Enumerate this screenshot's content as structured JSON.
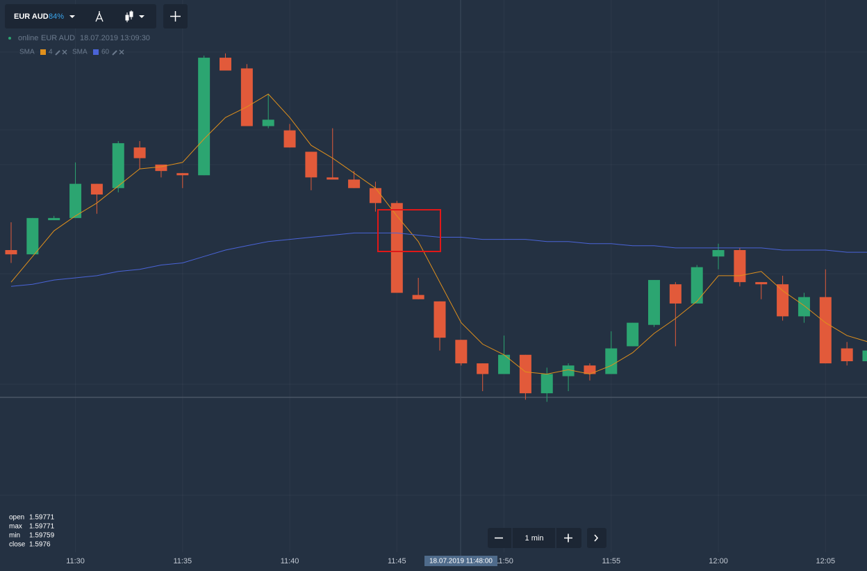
{
  "toolbar": {
    "asset": "EUR AUD",
    "payout": "84%"
  },
  "status": {
    "state": "online",
    "asset": "EUR AUD",
    "time": "18.07.2019 13:09:30"
  },
  "ohlc_panel": {
    "labels": [
      "open",
      "max",
      "min",
      "close"
    ]
  },
  "crosshair_label": "18.07.2019 11:48:00",
  "zoom": {
    "label": "1 min"
  },
  "chart_data": {
    "type": "candlestick",
    "x": [
      null,
      null,
      null,
      "11:30",
      null,
      null,
      null,
      null,
      "11:35",
      null,
      null,
      null,
      null,
      "11:40",
      null,
      null,
      null,
      null,
      "11:45",
      null,
      null,
      null,
      null,
      "11:50",
      null,
      null,
      null,
      null,
      "11:55",
      null,
      null,
      null,
      null,
      "12:00",
      null,
      null,
      null,
      null,
      "12:05",
      null,
      null
    ],
    "open": [
      1.59813,
      1.59811,
      1.59827,
      1.59828,
      1.59844,
      1.59842,
      1.59861,
      1.59853,
      1.59849,
      1.59848,
      1.59903,
      1.59898,
      1.59871,
      1.59869,
      1.59859,
      1.59847,
      1.59846,
      1.59842,
      1.59835,
      1.59792,
      1.59789,
      1.59771,
      1.5976,
      1.59755,
      1.59764,
      1.59746,
      1.59754,
      1.59759,
      1.59755,
      1.59768,
      1.59778,
      1.59797,
      1.59788,
      1.5981,
      1.59813,
      1.59798,
      1.59797,
      1.59782,
      1.59791,
      1.59767,
      1.59761
    ],
    "high": [
      1.59826,
      1.59828,
      1.59829,
      1.59854,
      1.59844,
      1.59864,
      1.59864,
      1.59853,
      1.59849,
      1.59904,
      1.59905,
      1.599,
      1.59886,
      1.59872,
      1.59859,
      1.5987,
      1.5985,
      1.59845,
      1.59836,
      1.598,
      1.59789,
      1.59771,
      1.5976,
      1.59773,
      1.59764,
      1.59758,
      1.5976,
      1.5976,
      1.59775,
      1.59779,
      1.59799,
      1.59798,
      1.59806,
      1.59816,
      1.59814,
      1.59798,
      1.59801,
      1.59793,
      1.59804,
      1.5977,
      1.59766
    ],
    "low": [
      1.59807,
      1.59811,
      1.59827,
      1.59828,
      1.5983,
      1.5984,
      1.59851,
      1.59847,
      1.59842,
      1.59848,
      1.59897,
      1.59871,
      1.5987,
      1.59861,
      1.59841,
      1.59846,
      1.59842,
      1.59831,
      1.59793,
      1.5979,
      1.59766,
      1.59759,
      1.59747,
      1.59755,
      1.59743,
      1.59742,
      1.59747,
      1.59752,
      1.59755,
      1.59768,
      1.59777,
      1.59768,
      1.59788,
      1.59804,
      1.59796,
      1.5979,
      1.5978,
      1.59779,
      1.5976,
      1.59759,
      1.59761
    ],
    "close": [
      1.59811,
      1.59828,
      1.59828,
      1.59844,
      1.59839,
      1.59863,
      1.59856,
      1.5985,
      1.59848,
      1.59903,
      1.59897,
      1.59871,
      1.59874,
      1.59861,
      1.59847,
      1.59846,
      1.59842,
      1.59835,
      1.59793,
      1.5979,
      1.59772,
      1.5976,
      1.59755,
      1.59764,
      1.59746,
      1.59755,
      1.59759,
      1.59755,
      1.59767,
      1.59779,
      1.59799,
      1.59788,
      1.59805,
      1.59813,
      1.59798,
      1.59797,
      1.59782,
      1.59791,
      1.5976,
      1.59761,
      1.59766
    ],
    "up_color": "#2ca571",
    "down_color": "#e25a3a",
    "indicators": [
      {
        "name": "SMA",
        "period": 4,
        "color": "#e0901c",
        "values": [
          1.59798,
          1.5981,
          1.59822,
          1.59829,
          1.59835,
          1.59843,
          1.59851,
          1.59852,
          1.59854,
          1.59865,
          1.59875,
          1.5988,
          1.59886,
          1.59875,
          1.59862,
          1.59856,
          1.59849,
          1.59842,
          1.59829,
          1.59817,
          1.59798,
          1.59779,
          1.59769,
          1.59764,
          1.59756,
          1.59755,
          1.59757,
          1.59755,
          1.59759,
          1.59765,
          1.59774,
          1.59781,
          1.59789,
          1.59801,
          1.59801,
          1.59803,
          1.59794,
          1.59787,
          1.59779,
          1.59773,
          1.5977
        ]
      },
      {
        "name": "SMA",
        "period": 60,
        "color": "#4a64d8",
        "values": [
          1.59796,
          1.59797,
          1.59799,
          1.598,
          1.59801,
          1.59803,
          1.59804,
          1.59806,
          1.59807,
          1.5981,
          1.59813,
          1.59815,
          1.59817,
          1.59818,
          1.59819,
          1.5982,
          1.59821,
          1.59821,
          1.59821,
          1.5982,
          1.59819,
          1.59819,
          1.59818,
          1.59818,
          1.59818,
          1.59817,
          1.59817,
          1.59816,
          1.59816,
          1.59815,
          1.59815,
          1.59814,
          1.59814,
          1.59814,
          1.59814,
          1.59814,
          1.59813,
          1.59813,
          1.59813,
          1.59812,
          1.59812
        ]
      }
    ],
    "ylim": [
      1.5967,
      1.5993
    ],
    "grid": true,
    "crosshair_index": 21
  }
}
